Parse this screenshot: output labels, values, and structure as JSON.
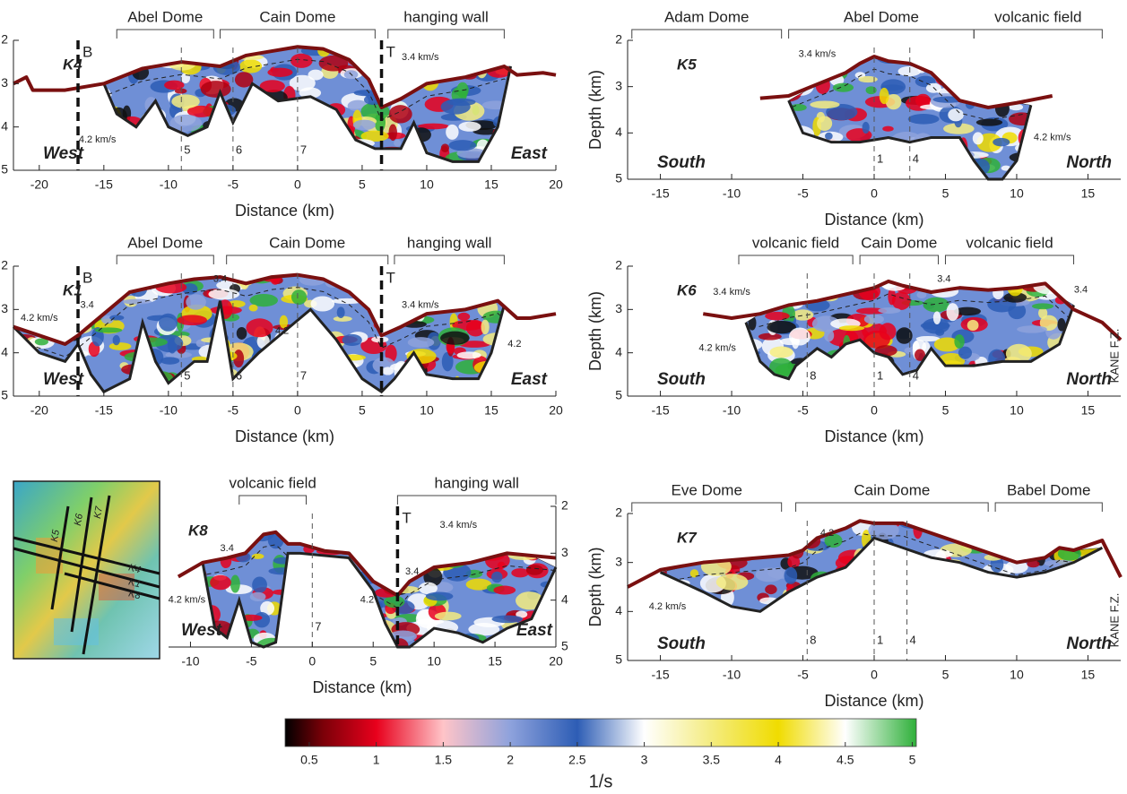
{
  "chart_data": [
    {
      "type": "section",
      "title": "K4",
      "xlabel": "Distance (km)",
      "ylabel": "Depth (km)",
      "left_label": "West",
      "right_label": "East",
      "xlim": [
        -22,
        20
      ],
      "ylim": [
        2,
        5
      ],
      "invert": true,
      "yaxis_side": "left",
      "xticks": [
        -20,
        -15,
        -10,
        -5,
        0,
        5,
        10,
        15,
        20
      ],
      "yticks": [
        2,
        3,
        4,
        5
      ],
      "regions": [
        {
          "label": "Abel Dome",
          "from": -14,
          "to": -6.5
        },
        {
          "label": "Cain Dome",
          "from": -6,
          "to": 6
        },
        {
          "label": "hanging wall",
          "from": 7,
          "to": 16
        }
      ],
      "markers": [
        {
          "label": "B",
          "x": -17
        },
        {
          "label": "T",
          "x": 6.5
        }
      ],
      "crossings": [
        {
          "label": "5",
          "x": -9
        },
        {
          "label": "6",
          "x": -5
        },
        {
          "label": "7",
          "x": 0
        }
      ],
      "annotations": [
        {
          "text": "4.2 km/s",
          "x": -15.5,
          "depth": 4.3
        },
        {
          "text": "3.4 km/s",
          "x": 9.5,
          "depth": 2.4
        }
      ],
      "seafloor": {
        "x": [
          -22,
          -21,
          -20.5,
          -18,
          -15,
          -12,
          -9,
          -6,
          -4,
          -2,
          0,
          2,
          4,
          5.5,
          6.5,
          8,
          10,
          13,
          16,
          17,
          19,
          20
        ],
        "depth": [
          3.0,
          2.85,
          3.15,
          3.15,
          3.0,
          2.65,
          2.5,
          2.6,
          2.35,
          2.25,
          2.15,
          2.2,
          2.45,
          2.9,
          3.55,
          3.35,
          3.0,
          2.85,
          2.6,
          2.8,
          2.75,
          2.8
        ]
      },
      "bottom": {
        "x": [
          -15,
          -14,
          -12.5,
          -11,
          -10,
          -8.5,
          -7,
          -6,
          -5,
          -3.5,
          -1.5,
          1,
          3,
          4.5,
          6,
          8,
          9,
          10,
          12,
          14,
          15.5,
          16.5
        ],
        "depth": [
          3.0,
          3.7,
          4.0,
          3.4,
          4.0,
          4.2,
          4.0,
          3.2,
          3.9,
          3.0,
          3.4,
          3.3,
          3.6,
          4.3,
          4.5,
          4.5,
          3.9,
          4.6,
          4.8,
          4.8,
          4.0,
          2.6
        ]
      }
    },
    {
      "type": "section",
      "title": "K1",
      "xlabel": "Distance (km)",
      "ylabel": "Depth (km)",
      "left_label": "West",
      "right_label": "East",
      "xlim": [
        -22,
        20
      ],
      "ylim": [
        2,
        5
      ],
      "invert": true,
      "yaxis_side": "left",
      "xticks": [
        -20,
        -15,
        -10,
        -5,
        0,
        5,
        10,
        15,
        20
      ],
      "yticks": [
        2,
        3,
        4,
        5
      ],
      "regions": [
        {
          "label": "Abel Dome",
          "from": -14,
          "to": -6.5
        },
        {
          "label": "Cain Dome",
          "from": -5.5,
          "to": 7
        },
        {
          "label": "hanging wall",
          "from": 7.5,
          "to": 16
        }
      ],
      "markers": [
        {
          "label": "B",
          "x": -17
        },
        {
          "label": "T",
          "x": 6.5
        }
      ],
      "crossings": [
        {
          "label": "5",
          "x": -9
        },
        {
          "label": "6",
          "x": -5
        },
        {
          "label": "7",
          "x": 0
        }
      ],
      "annotations": [
        {
          "text": "4.2 km/s",
          "x": -20,
          "depth": 3.2
        },
        {
          "text": "3.4",
          "x": -16.3,
          "depth": 2.9
        },
        {
          "text": "3.4",
          "x": -6,
          "depth": 2.3
        },
        {
          "text": "4.2",
          "x": -1.2,
          "depth": 3.5
        },
        {
          "text": "3.4 km/s",
          "x": 9.5,
          "depth": 2.9
        },
        {
          "text": "4.2",
          "x": 16.8,
          "depth": 3.8
        }
      ],
      "seafloor": {
        "x": [
          -22,
          -20,
          -18,
          -17,
          -15,
          -13,
          -10,
          -8,
          -6,
          -4,
          -2,
          0,
          2,
          4,
          5.5,
          6.5,
          8,
          10,
          13,
          15.5,
          17,
          18,
          20
        ],
        "depth": [
          3.4,
          3.6,
          3.8,
          3.6,
          3.1,
          2.6,
          2.4,
          2.3,
          2.25,
          2.4,
          2.25,
          2.2,
          2.3,
          2.6,
          3.0,
          3.6,
          3.4,
          3.1,
          3.0,
          2.8,
          3.2,
          3.2,
          3.1
        ]
      },
      "bottom": {
        "x": [
          -22,
          -20,
          -18,
          -17,
          -16,
          -15,
          -13,
          -12,
          -11,
          -10,
          -8,
          -7,
          -6,
          -5,
          -3,
          -1,
          1,
          3,
          5,
          6.5,
          7.5,
          9,
          10,
          12,
          14,
          15,
          16
        ],
        "depth": [
          3.4,
          4.0,
          4.2,
          3.8,
          4.5,
          4.9,
          4.6,
          3.3,
          4.2,
          4.7,
          4.2,
          4.2,
          2.8,
          4.6,
          4.0,
          3.5,
          3.0,
          3.7,
          4.6,
          4.9,
          4.6,
          4.0,
          4.5,
          4.6,
          4.6,
          4.0,
          2.9
        ]
      }
    },
    {
      "type": "section",
      "title": "K8",
      "xlabel": "Distance (km)",
      "left_label": "West",
      "right_label": "East",
      "xlim": [
        -11.8,
        20
      ],
      "ylim": [
        2,
        5
      ],
      "invert": true,
      "yaxis_side": "right",
      "xticks": [
        -10,
        -5,
        0,
        5,
        10,
        15,
        20
      ],
      "yticks": [
        2,
        3,
        4,
        5
      ],
      "regions": [
        {
          "label": "volcanic field",
          "from": -6,
          "to": -0.5
        },
        {
          "label": "hanging wall",
          "from": 7,
          "to": 20
        }
      ],
      "markers": [
        {
          "label": "T",
          "x": 7
        }
      ],
      "crossings": [
        {
          "label": "7",
          "x": 0
        }
      ],
      "annotations": [
        {
          "text": "3.4",
          "x": -7,
          "depth": 2.9
        },
        {
          "text": "4.2 km/s",
          "x": -10.3,
          "depth": 4.0
        },
        {
          "text": "3.4",
          "x": 8.2,
          "depth": 3.4
        },
        {
          "text": "4.2",
          "x": 4.5,
          "depth": 4.0
        },
        {
          "text": "3.4 km/s",
          "x": 12,
          "depth": 2.4
        }
      ],
      "seafloor": {
        "x": [
          -11,
          -9,
          -7,
          -5.5,
          -4,
          -3,
          -2,
          -1,
          1,
          3,
          4,
          5,
          6,
          7,
          8,
          10,
          13,
          16,
          18,
          20
        ],
        "depth": [
          3.5,
          3.2,
          3.1,
          3.0,
          2.6,
          2.55,
          2.8,
          2.8,
          2.95,
          3.0,
          3.3,
          3.6,
          3.75,
          3.9,
          3.6,
          3.3,
          3.2,
          3.0,
          3.05,
          3.1
        ]
      },
      "bottom": {
        "x": [
          -9,
          -8,
          -7,
          -6,
          -5,
          -4,
          -3,
          -2,
          -1,
          3,
          5,
          6,
          7,
          8,
          9,
          10,
          12,
          14,
          16,
          18,
          20
        ],
        "depth": [
          3.2,
          4.6,
          4.8,
          4.0,
          4.9,
          5.0,
          4.9,
          3.0,
          3.0,
          3.1,
          3.8,
          4.5,
          5.0,
          5.0,
          4.8,
          4.6,
          4.7,
          4.9,
          4.6,
          4.4,
          3.3
        ]
      }
    },
    {
      "type": "section",
      "title": "K5",
      "xlabel": "Distance (km)",
      "ylabel": "Depth (km)",
      "left_label": "South",
      "right_label": "North",
      "xlim": [
        -17.3,
        17.3
      ],
      "ylim": [
        2,
        5
      ],
      "invert": true,
      "yaxis_side": "left",
      "xticks": [
        -15,
        -10,
        -5,
        0,
        5,
        10,
        15
      ],
      "yticks": [
        2,
        3,
        4,
        5
      ],
      "regions": [
        {
          "label": "Adam Dome",
          "from": -17,
          "to": -6.5
        },
        {
          "label": "Abel Dome",
          "from": -6,
          "to": 7
        },
        {
          "label": "volcanic field",
          "from": 7,
          "to": 16
        }
      ],
      "crossings": [
        {
          "label": "1",
          "x": 0
        },
        {
          "label": "4",
          "x": 2.5
        }
      ],
      "annotations": [
        {
          "text": "3.4 km/s",
          "x": -4,
          "depth": 2.3
        },
        {
          "text": "4.2 km/s",
          "x": 12.5,
          "depth": 4.1
        }
      ],
      "seafloor": {
        "x": [
          -8,
          -6,
          -4,
          -2,
          -1,
          0,
          1,
          2.5,
          4,
          6,
          8,
          10,
          12.5
        ],
        "depth": [
          3.25,
          3.2,
          2.95,
          2.7,
          2.5,
          2.35,
          2.45,
          2.5,
          2.7,
          3.3,
          3.45,
          3.35,
          3.2
        ]
      },
      "bottom": {
        "x": [
          -6,
          -5,
          -3,
          -1,
          1,
          2.5,
          4,
          6,
          7,
          8,
          9,
          10,
          11
        ],
        "depth": [
          3.3,
          4.0,
          4.2,
          4.2,
          4.1,
          4.2,
          4.1,
          4.1,
          4.6,
          5.0,
          5.0,
          4.6,
          3.4
        ]
      }
    },
    {
      "type": "section",
      "title": "K6",
      "xlabel": "Distance (km)",
      "ylabel": "Depth (km)",
      "left_label": "South",
      "right_label": "North",
      "right_note": "KANE F.Z.",
      "xlim": [
        -17.3,
        17.3
      ],
      "ylim": [
        2,
        5
      ],
      "invert": true,
      "yaxis_side": "left",
      "xticks": [
        -15,
        -10,
        -5,
        0,
        5,
        10,
        15
      ],
      "yticks": [
        2,
        3,
        4,
        5
      ],
      "regions": [
        {
          "label": "volcanic field",
          "from": -9.5,
          "to": -1.5
        },
        {
          "label": "Cain Dome",
          "from": -1,
          "to": 4.5
        },
        {
          "label": "volcanic field",
          "from": 5,
          "to": 14
        }
      ],
      "crossings": [
        {
          "label": "8",
          "x": -4.7
        },
        {
          "label": "1",
          "x": 0
        },
        {
          "label": "4",
          "x": 2.5
        }
      ],
      "annotations": [
        {
          "text": "3.4 km/s",
          "x": -10,
          "depth": 2.6
        },
        {
          "text": "4.2 km/s",
          "x": -11,
          "depth": 3.9
        },
        {
          "text": "3.4",
          "x": 4.9,
          "depth": 2.3
        },
        {
          "text": "3.4",
          "x": 14.5,
          "depth": 2.55
        }
      ],
      "seafloor": {
        "x": [
          -12,
          -10,
          -8,
          -6,
          -4,
          -2,
          0,
          1,
          2,
          4,
          6,
          8,
          10,
          12,
          13,
          14,
          16,
          17.3
        ],
        "depth": [
          3.1,
          3.2,
          3.1,
          2.9,
          2.8,
          2.65,
          2.5,
          2.35,
          2.45,
          2.6,
          2.5,
          2.55,
          2.5,
          2.4,
          2.7,
          3.0,
          3.3,
          3.7
        ]
      },
      "bottom": {
        "x": [
          -9,
          -8,
          -7,
          -6,
          -5.5,
          -4,
          -3,
          -2,
          -1,
          0,
          1,
          2,
          3,
          4,
          5,
          7,
          9,
          11,
          13,
          14
        ],
        "depth": [
          3.3,
          4.2,
          4.5,
          4.6,
          4.3,
          3.9,
          4.1,
          3.8,
          3.7,
          4.0,
          4.1,
          4.5,
          4.4,
          3.9,
          4.3,
          4.3,
          4.2,
          4.2,
          3.8,
          2.9
        ]
      }
    },
    {
      "type": "section",
      "title": "K7",
      "xlabel": "Distance (km)",
      "ylabel": "Depth (km)",
      "left_label": "South",
      "right_label": "North",
      "right_note": "KANE F.Z.",
      "xlim": [
        -17.3,
        17.3
      ],
      "ylim": [
        2,
        5
      ],
      "invert": true,
      "yaxis_side": "left",
      "xticks": [
        -15,
        -10,
        -5,
        0,
        5,
        10,
        15
      ],
      "yticks": [
        2,
        3,
        4,
        5
      ],
      "regions": [
        {
          "label": "Eve Dome",
          "from": -17,
          "to": -6.5
        },
        {
          "label": "Cain Dome",
          "from": -5.5,
          "to": 8
        },
        {
          "label": "Babel Dome",
          "from": 8.5,
          "to": 16
        }
      ],
      "crossings": [
        {
          "label": "8",
          "x": -4.7
        },
        {
          "label": "1",
          "x": 0
        },
        {
          "label": "4",
          "x": 2.3
        }
      ],
      "annotations": [
        {
          "text": "4.2",
          "x": -3.3,
          "depth": 2.4
        },
        {
          "text": "4.2 km/s",
          "x": -14.5,
          "depth": 3.9
        }
      ],
      "seafloor": {
        "x": [
          -17.3,
          -15,
          -12,
          -10,
          -8,
          -6,
          -5,
          -4,
          -2,
          -1,
          0,
          2,
          4,
          6,
          8,
          10,
          12,
          13,
          14,
          16,
          17.3
        ],
        "depth": [
          3.5,
          3.15,
          3.0,
          2.95,
          2.9,
          2.85,
          2.75,
          2.5,
          2.3,
          2.15,
          2.2,
          2.2,
          2.4,
          2.6,
          2.8,
          3.0,
          2.9,
          2.7,
          2.75,
          2.55,
          3.3
        ]
      },
      "bottom": {
        "x": [
          -15,
          -12,
          -10,
          -8,
          -6,
          -4,
          -2,
          0,
          2,
          4,
          6,
          8,
          10,
          12,
          14,
          16
        ],
        "depth": [
          3.2,
          3.6,
          3.9,
          4.0,
          3.6,
          3.3,
          3.1,
          2.5,
          2.7,
          2.9,
          3.0,
          3.2,
          3.3,
          3.2,
          3.0,
          2.7
        ]
      }
    },
    {
      "type": "colorbar",
      "label": "1/s",
      "xlim": [
        0.32,
        5.03
      ],
      "xticks": [
        0.5,
        1,
        1.5,
        2,
        2.5,
        3,
        3.5,
        4,
        4.5,
        5
      ],
      "stops": [
        {
          "value": 0.32,
          "color": "#000000"
        },
        {
          "value": 0.6,
          "color": "#7a0008"
        },
        {
          "value": 1.0,
          "color": "#e8001c"
        },
        {
          "value": 1.5,
          "color": "#ffc4c8"
        },
        {
          "value": 2.0,
          "color": "#8ea2dc"
        },
        {
          "value": 2.5,
          "color": "#2d5db5"
        },
        {
          "value": 3.0,
          "color": "#ffffff"
        },
        {
          "value": 3.5,
          "color": "#f4ec80"
        },
        {
          "value": 4.0,
          "color": "#f0dc00"
        },
        {
          "value": 4.5,
          "color": "#ffffff"
        },
        {
          "value": 5.03,
          "color": "#2fb03a"
        }
      ]
    }
  ],
  "inset_map": {
    "labels": [
      "K5",
      "K6",
      "K7",
      "K4",
      "K1",
      "K8"
    ]
  }
}
